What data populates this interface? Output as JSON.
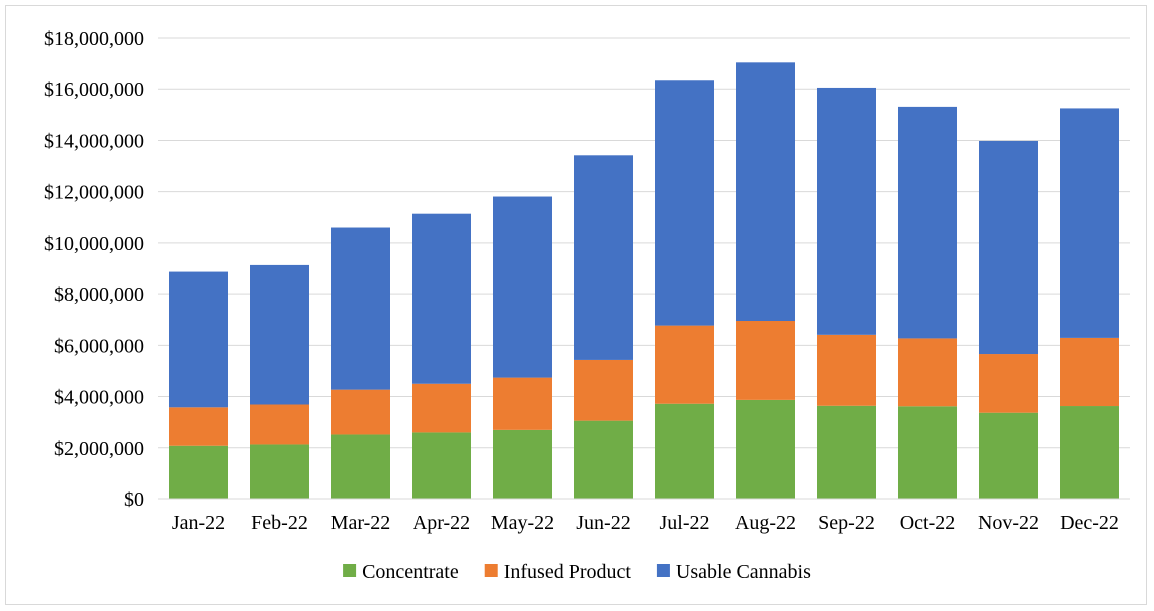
{
  "chart_data": {
    "type": "bar",
    "stacked": true,
    "categories": [
      "Jan-22",
      "Feb-22",
      "Mar-22",
      "Apr-22",
      "May-22",
      "Jun-22",
      "Jul-22",
      "Aug-22",
      "Sep-22",
      "Oct-22",
      "Nov-22",
      "Dec-22"
    ],
    "series": [
      {
        "name": "Concentrate",
        "color": "#70ad47",
        "values": [
          2080000,
          2130000,
          2520000,
          2600000,
          2700000,
          3060000,
          3720000,
          3870000,
          3640000,
          3620000,
          3370000,
          3630000
        ]
      },
      {
        "name": "Infused Product",
        "color": "#ed7d31",
        "values": [
          1500000,
          1560000,
          1750000,
          1900000,
          2040000,
          2370000,
          3050000,
          3080000,
          2770000,
          2650000,
          2290000,
          2660000
        ]
      },
      {
        "name": "Usable Cannabis",
        "color": "#4472c4",
        "values": [
          5300000,
          5450000,
          6330000,
          6640000,
          7070000,
          7990000,
          9580000,
          10100000,
          9640000,
          9040000,
          8320000,
          8960000
        ]
      }
    ],
    "title": "",
    "xlabel": "",
    "ylabel": "",
    "ylim": [
      0,
      18000000
    ],
    "yticks": [
      0,
      2000000,
      4000000,
      6000000,
      8000000,
      10000000,
      12000000,
      14000000,
      16000000,
      18000000
    ],
    "ytick_labels": [
      "$0",
      "$2,000,000",
      "$4,000,000",
      "$6,000,000",
      "$8,000,000",
      "$10,000,000",
      "$12,000,000",
      "$14,000,000",
      "$16,000,000",
      "$18,000,000"
    ],
    "grid": true,
    "legend_position": "bottom"
  }
}
